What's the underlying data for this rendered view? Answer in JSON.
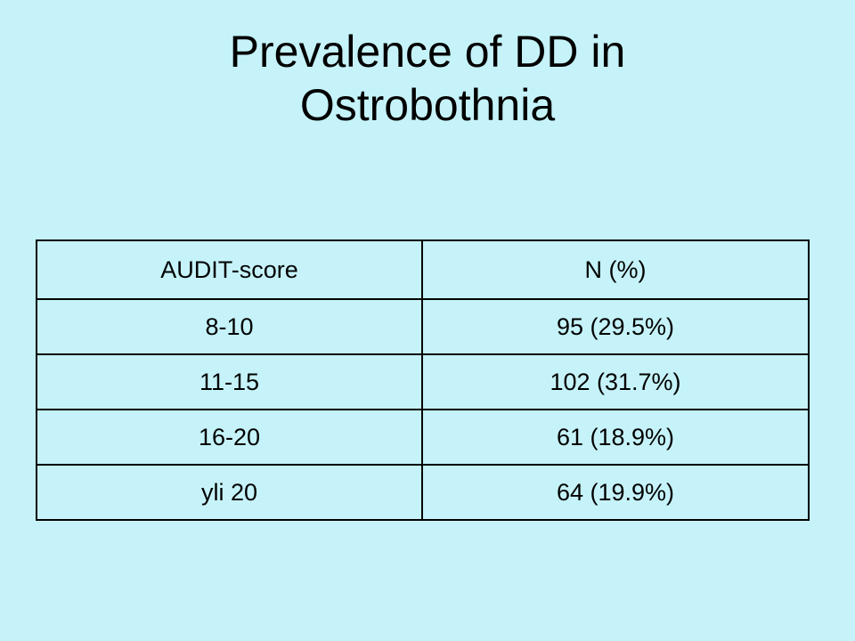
{
  "slide": {
    "title_line1": "Prevalence of DD in",
    "title_line2": "Ostrobothnia"
  },
  "table": {
    "headers": [
      "AUDIT-score",
      "N (%)"
    ],
    "rows": [
      [
        "8-10",
        "95 (29.5%)"
      ],
      [
        "11-15",
        "102 (31.7%)"
      ],
      [
        "16-20",
        "61 (18.9%)"
      ],
      [
        "yli 20",
        "64 (19.9%)"
      ]
    ]
  },
  "colors": {
    "background": "#c5f3f9",
    "text": "#000000",
    "border": "#000000"
  }
}
